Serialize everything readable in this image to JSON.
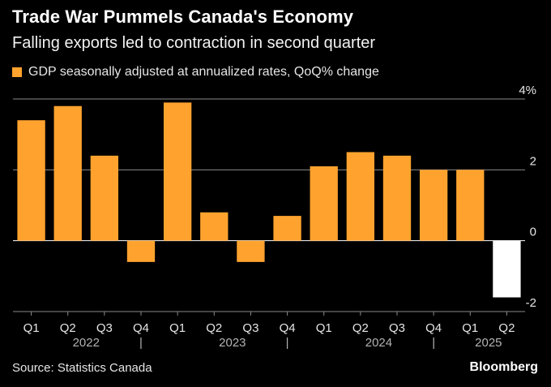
{
  "header": {
    "title": "Trade War Pummels Canada's Economy",
    "subtitle": "Falling exports led to contraction in second quarter"
  },
  "footer": {
    "source": "Source: Statistics Canada",
    "brand": "Bloomberg"
  },
  "colors": {
    "bar": "#ffa32e",
    "highlight_bar": "#ffffff",
    "grid": "#8a8a8a",
    "axis_text": "#e6e6e6",
    "year_text": "#b3b3b3"
  },
  "chart_data": {
    "type": "bar",
    "title": "Trade War Pummels Canada's Economy",
    "subtitle": "Falling exports led to contraction in second quarter",
    "categories": [
      "Q1",
      "Q2",
      "Q3",
      "Q4",
      "Q1",
      "Q2",
      "Q3",
      "Q4",
      "Q1",
      "Q2",
      "Q3",
      "Q4",
      "Q1",
      "Q2"
    ],
    "years": [
      {
        "label": "2022",
        "from": 0,
        "to": 3
      },
      {
        "label": "2023",
        "from": 4,
        "to": 7
      },
      {
        "label": "2024",
        "from": 8,
        "to": 11
      },
      {
        "label": "2025",
        "from": 12,
        "to": 13
      }
    ],
    "year_separator": "|",
    "series": [
      {
        "name": "GDP seasonally adjusted at annualized rates, QoQ% change",
        "values": [
          3.4,
          3.8,
          2.4,
          -0.6,
          3.9,
          0.8,
          -0.6,
          0.7,
          2.1,
          2.5,
          2.4,
          2.0,
          2.0,
          -1.6
        ]
      }
    ],
    "highlight_index": 13,
    "y_ticks": [
      4,
      2,
      0,
      -2
    ],
    "y_tick_labels": [
      "4%",
      "2",
      "0",
      "-2"
    ],
    "ylim": [
      -2,
      4
    ],
    "grid": true,
    "legend_position": "top-left",
    "xlabel": "",
    "ylabel": ""
  }
}
